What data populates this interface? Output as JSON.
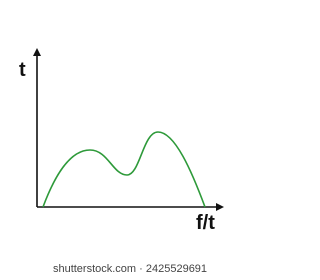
{
  "axes": {
    "y_label": "t",
    "x_label": "f/t"
  },
  "watermark": "shutterstock.com · 2425529691"
}
